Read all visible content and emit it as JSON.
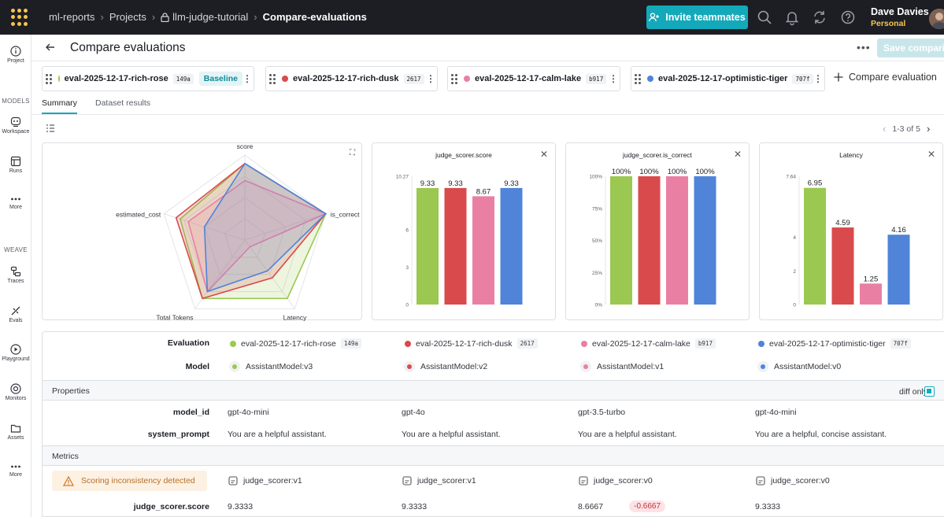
{
  "topbar": {
    "breadcrumbs": [
      "ml-reports",
      "Projects",
      "llm-judge-tutorial",
      "Compare-evaluations"
    ],
    "invite_label": "Invite teammates",
    "user_name": "Dave Davies",
    "user_plan": "Personal"
  },
  "sidebar": {
    "project_label": "Project",
    "models_section": "MODELS",
    "workspace_label": "Workspace",
    "runs_label": "Runs",
    "more_label": "More",
    "weave_section": "WEAVE",
    "traces_label": "Traces",
    "evals_label": "Evals",
    "playground_label": "Playground",
    "monitors_label": "Monitors",
    "assets_label": "Assets",
    "more2_label": "More"
  },
  "header": {
    "title": "Compare evaluations",
    "save_label": "Save comparison"
  },
  "evals": [
    {
      "name": "eval-2025-12-17-rich-rose",
      "hash": "149a",
      "color": "#9bc850"
    },
    {
      "name": "eval-2025-12-17-rich-dusk",
      "hash": "2617",
      "color": "#d94a4c"
    },
    {
      "name": "eval-2025-12-17-calm-lake",
      "hash": "b917",
      "color": "#ea7fa4"
    },
    {
      "name": "eval-2025-12-17-optimistic-tiger",
      "hash": "707f",
      "color": "#4f84d9"
    }
  ],
  "baseline_label": "Baseline",
  "compare_label": "Compare evaluation",
  "tabs": {
    "summary": "Summary",
    "dataset": "Dataset results"
  },
  "pager": "1-3 of 5",
  "chart_data": [
    {
      "type": "radar",
      "axes": [
        "score",
        "is_correct",
        "Latency",
        "Total Tokens",
        "estimated_cost"
      ],
      "series": [
        {
          "name": "eval-2025-12-17-rich-rose",
          "values": [
            0.9,
            1.0,
            0.85,
            0.85,
            0.8
          ]
        },
        {
          "name": "eval-2025-12-17-rich-dusk",
          "values": [
            0.9,
            1.0,
            0.55,
            0.85,
            0.85
          ]
        },
        {
          "name": "eval-2025-12-17-calm-lake",
          "values": [
            0.7,
            1.0,
            0.1,
            0.75,
            0.7
          ]
        },
        {
          "name": "eval-2025-12-17-optimistic-tiger",
          "values": [
            0.9,
            1.0,
            0.45,
            0.75,
            0.5
          ]
        }
      ]
    },
    {
      "type": "bar",
      "title": "judge_scorer.score",
      "categories": [
        "rich-rose",
        "rich-dusk",
        "calm-lake",
        "optimistic-tiger"
      ],
      "values": [
        9.33,
        9.33,
        8.67,
        9.33
      ],
      "labels": [
        "9.33",
        "9.33",
        "8.67",
        "9.33"
      ],
      "yticks": [
        "0",
        "3",
        "6",
        "10.27"
      ],
      "ylim": [
        0,
        10.27
      ]
    },
    {
      "type": "bar",
      "title": "judge_scorer.is_correct",
      "categories": [
        "rich-rose",
        "rich-dusk",
        "calm-lake",
        "optimistic-tiger"
      ],
      "values": [
        100,
        100,
        100,
        100
      ],
      "labels": [
        "100%",
        "100%",
        "100%",
        "100%"
      ],
      "yticks": [
        "0%",
        "25%",
        "50%",
        "75%",
        "100%"
      ],
      "ylim": [
        0,
        100
      ]
    },
    {
      "type": "bar",
      "title": "Latency",
      "categories": [
        "rich-rose",
        "rich-dusk",
        "calm-lake",
        "optimistic-tiger"
      ],
      "values": [
        6.95,
        4.59,
        1.25,
        4.16
      ],
      "labels": [
        "6.95",
        "4.59",
        "1.25",
        "4.16"
      ],
      "yticks": [
        "0",
        "2",
        "4",
        "7.64"
      ],
      "ylim": [
        0,
        7.64
      ]
    }
  ],
  "table": {
    "evaluation_label": "Evaluation",
    "model_label": "Model",
    "models": [
      "AssistantModel:v3",
      "AssistantModel:v2",
      "AssistantModel:v1",
      "AssistantModel:v0"
    ],
    "properties_label": "Properties",
    "diff_only_label": "diff only",
    "model_id_label": "model_id",
    "model_ids": [
      "gpt-4o-mini",
      "gpt-4o",
      "gpt-3.5-turbo",
      "gpt-4o-mini"
    ],
    "system_prompt_label": "system_prompt",
    "system_prompts": [
      "You are a helpful assistant.",
      "You are a helpful assistant.",
      "You are a helpful assistant.",
      "You are a helpful, concise assistant."
    ],
    "metrics_label": "Metrics",
    "warning": "Scoring inconsistency detected",
    "scorers": [
      "judge_scorer:v1",
      "judge_scorer:v1",
      "judge_scorer:v0",
      "judge_scorer:v0"
    ],
    "score_label": "judge_scorer.score",
    "scores": [
      "9.3333",
      "9.3333",
      "8.6667",
      "9.3333"
    ],
    "score_delta": "-0.6667"
  }
}
